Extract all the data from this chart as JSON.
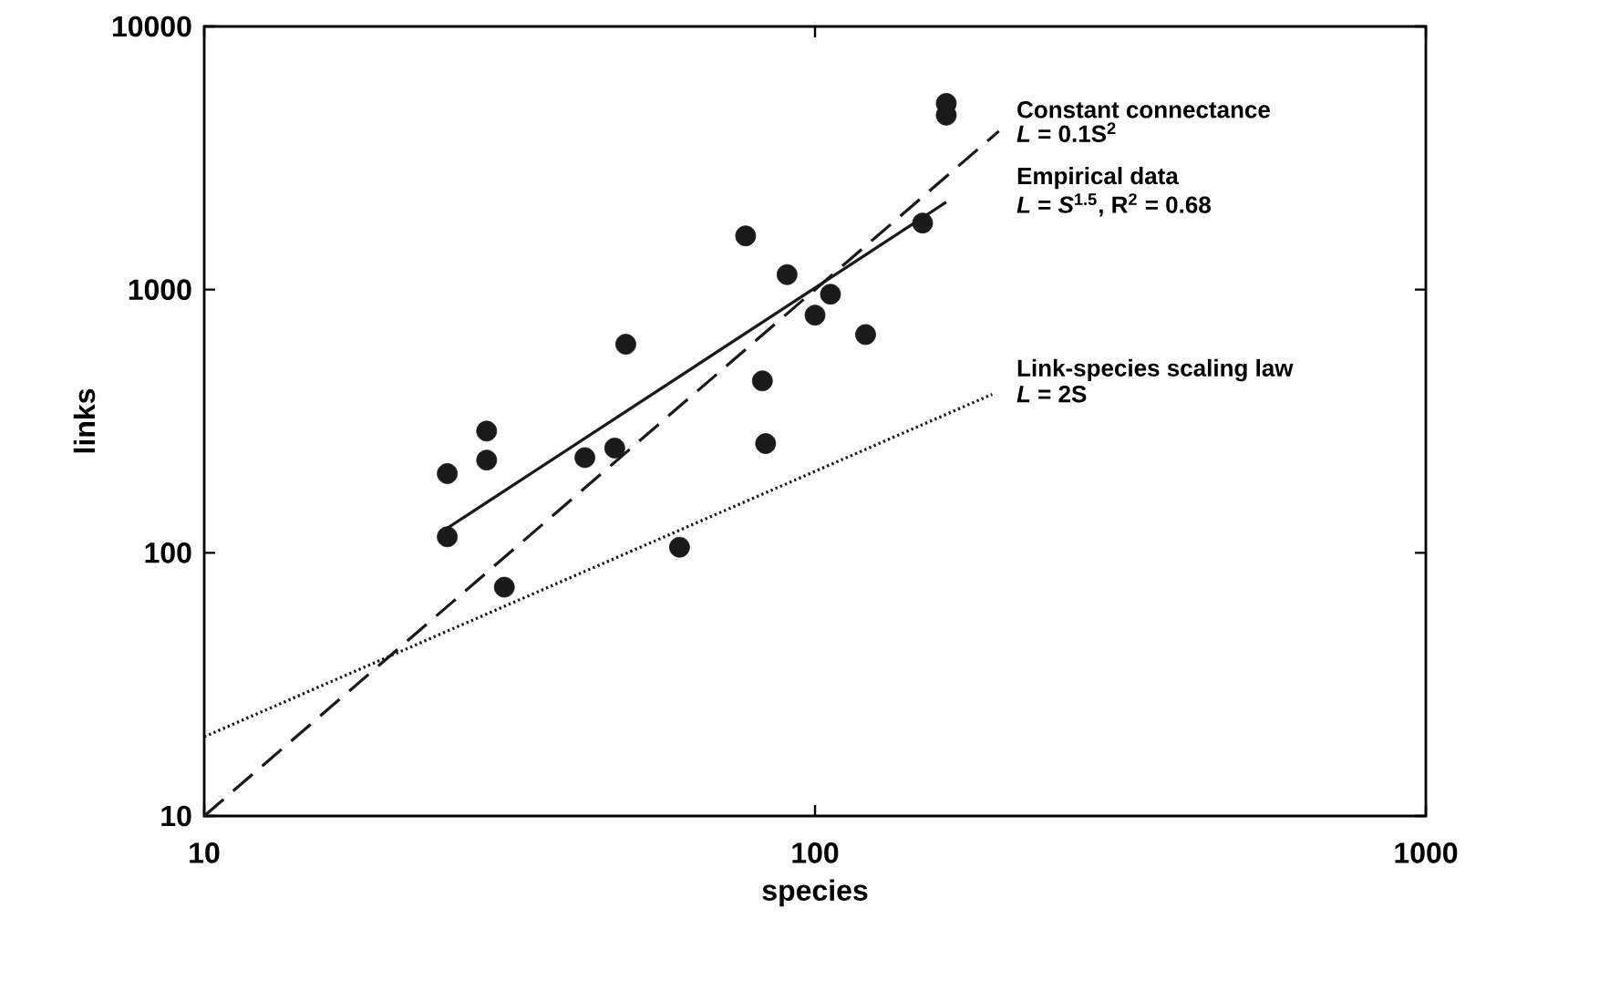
{
  "chart_data": {
    "type": "scatter",
    "xlabel": "species",
    "ylabel": "links",
    "log": "xy",
    "grid": false,
    "xlim": [
      10,
      1000
    ],
    "ylim": [
      10,
      10000
    ],
    "xticks": [
      10,
      100,
      1000
    ],
    "yticks": [
      10,
      100,
      1000,
      10000
    ],
    "series": [
      {
        "color": "#1a1a1a",
        "marker": "circle",
        "x": [
          25,
          25,
          29,
          29,
          31,
          42,
          47,
          49,
          60,
          77,
          82,
          83,
          90,
          100,
          106,
          121,
          150,
          164,
          164
        ],
        "values": [
          200,
          115,
          290,
          225,
          74,
          230,
          250,
          620,
          105,
          1600,
          450,
          260,
          1140,
          800,
          960,
          675,
          1790,
          5100,
          4600
        ]
      },
      {
        "type": "line",
        "name": "Constant connectance",
        "color": "#1a1a1a",
        "line_style": "dashed",
        "marker": "none",
        "x": [
          10,
          200
        ],
        "values": [
          10,
          4000
        ]
      },
      {
        "type": "line",
        "name": "Empirical data",
        "color": "#1a1a1a",
        "line_style": "solid",
        "marker": "none",
        "x": [
          25,
          164
        ],
        "values": [
          124,
          2150
        ]
      },
      {
        "type": "line",
        "name": "Link-species scaling law",
        "color": "#1a1a1a",
        "line_style": "dotted",
        "marker": "none",
        "x": [
          10,
          195
        ],
        "values": [
          20,
          400
        ]
      }
    ],
    "annotations": [
      "*L* = 0.1S$^{2}$",
      "*L* = *S*$^{1.5}$, R$^{2}$ = 0.68",
      "*L* = 2S"
    ]
  }
}
